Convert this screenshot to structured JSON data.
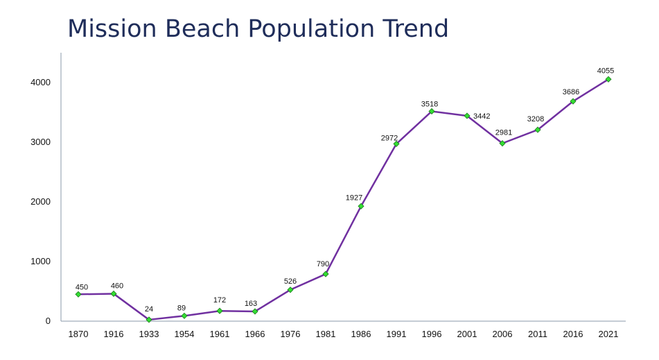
{
  "chart_data": {
    "type": "line",
    "title": "Mission Beach Population Trend",
    "xlabel": "",
    "ylabel": "",
    "categories": [
      "1870",
      "1916",
      "1933",
      "1954",
      "1961",
      "1966",
      "1976",
      "1981",
      "1986",
      "1991",
      "1996",
      "2001",
      "2006",
      "2011",
      "2016",
      "2021"
    ],
    "series": [
      {
        "values": [
          450,
          460,
          24,
          89,
          172,
          163,
          526,
          790,
          1927,
          2972,
          3518,
          3442,
          2981,
          3208,
          3686,
          4055
        ]
      }
    ],
    "ylim": [
      0,
      4500
    ],
    "yticks": [
      0,
      1000,
      2000,
      3000,
      4000
    ],
    "grid": false,
    "legend": "none",
    "data_labels": true,
    "colors": {
      "line": "#7030a0",
      "marker": "#33dd33",
      "marker_edge": "#1a7a1a",
      "axis": "#8899aa",
      "title": "#1f2d5a"
    }
  }
}
